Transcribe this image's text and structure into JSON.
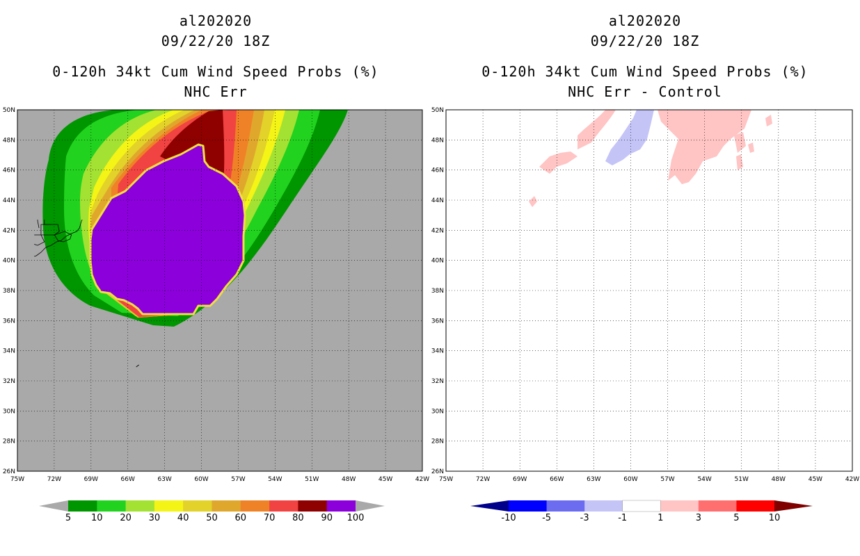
{
  "panels": [
    {
      "storm_id": "al202020",
      "datetime": "09/22/20 18Z",
      "product": "0-120h 34kt Cum Wind Speed Probs (%)",
      "subtitle": "NHC Err"
    },
    {
      "storm_id": "al202020",
      "datetime": "09/22/20 18Z",
      "product": "0-120h 34kt Cum Wind Speed Probs (%)",
      "subtitle": "NHC Err - Control"
    }
  ],
  "map": {
    "lon_labels": [
      "75W",
      "72W",
      "69W",
      "66W",
      "63W",
      "60W",
      "57W",
      "54W",
      "51W",
      "48W",
      "45W",
      "42W"
    ],
    "lat_labels": [
      "26N",
      "28N",
      "30N",
      "32N",
      "34N",
      "36N",
      "38N",
      "40N",
      "42N",
      "44N",
      "46N",
      "48N",
      "50N"
    ],
    "ocean_color_left": "#a9a9a9",
    "ocean_color_right": "#ffffff"
  },
  "colorbar_left": {
    "labels": [
      "5",
      "10",
      "20",
      "30",
      "40",
      "50",
      "60",
      "70",
      "80",
      "90",
      "100"
    ],
    "colors": [
      "#009600",
      "#21d21f",
      "#a3e233",
      "#f4f416",
      "#e2d22a",
      "#e0a72d",
      "#ef8226",
      "#f04342",
      "#8f0000",
      "#8c00dc"
    ],
    "under_color": "#a9a9a9",
    "over_color": "#a9a9a9"
  },
  "colorbar_right": {
    "labels": [
      "-10",
      "-5",
      "-3",
      "-1",
      "1",
      "3",
      "5",
      "10"
    ],
    "colors": [
      "#0000ff",
      "#6c6cf0",
      "#c4c4f7",
      "#ffffff",
      "#ffc4c4",
      "#ff6f6f",
      "#ff0000"
    ],
    "under_color": "#00008b",
    "over_color": "#800000"
  }
}
